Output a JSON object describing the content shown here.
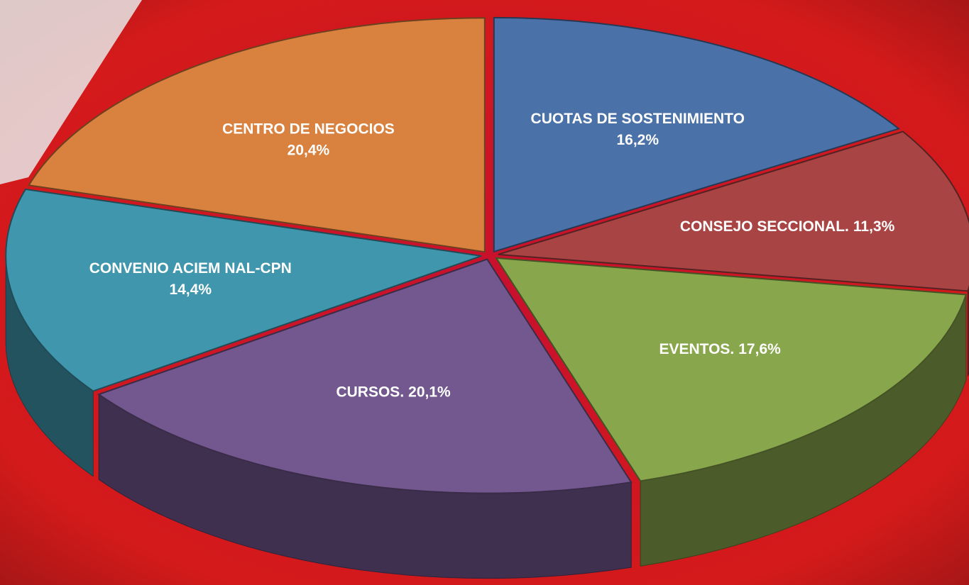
{
  "chart_data": {
    "type": "pie",
    "categories": [
      "CUOTAS DE SOSTENIMIENTO",
      "CONSEJO SECCIONAL.",
      "EVENTOS.",
      "CURSOS.",
      "CONVENIO ACIEM NAL-CPN",
      "CENTRO DE NEGOCIOS"
    ],
    "values": [
      16.2,
      11.3,
      17.6,
      20.1,
      14.4,
      20.4
    ],
    "value_labels": [
      "16,2%",
      "11,3%",
      "17,6%",
      "20,1%",
      "14,4%",
      "20,4%"
    ],
    "colors": [
      "#4a72a8",
      "#a84444",
      "#88a64b",
      "#735890",
      "#3f96ad",
      "#d9813e"
    ]
  }
}
